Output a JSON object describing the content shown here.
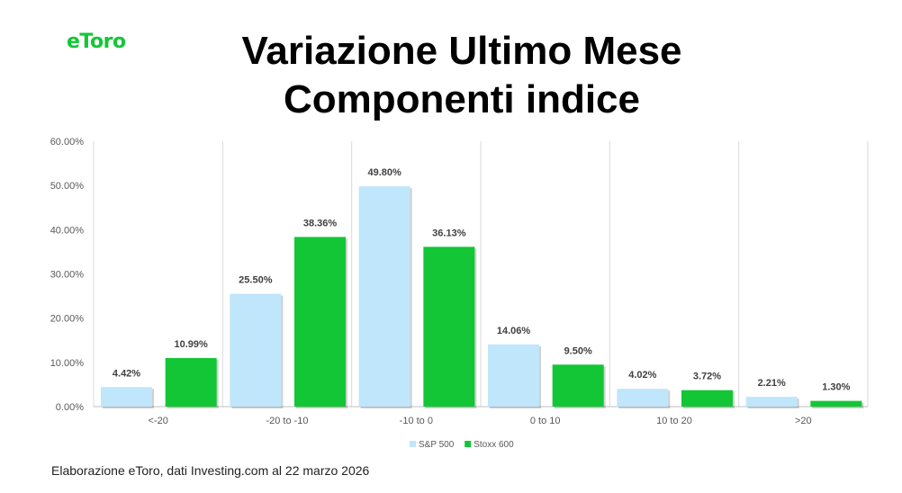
{
  "brand": {
    "logo_text": "eToro",
    "accent_color": "#13c636"
  },
  "title_line1": "Variazione Ultimo Mese",
  "title_line2": "Componenti indice",
  "footer": "Elaborazione eToro, dati Investing.com al 22 marzo 2026",
  "chart_data": {
    "type": "bar",
    "categories": [
      "<-20",
      "-20 to -10",
      "-10 to 0",
      "0 to 10",
      "10 to 20",
      ">20"
    ],
    "series": [
      {
        "name": "S&P 500",
        "color": "#bfe6fb",
        "values": [
          4.42,
          25.5,
          49.8,
          14.06,
          4.02,
          2.21
        ],
        "labels": [
          "4.42%",
          "25.50%",
          "49.80%",
          "14.06%",
          "4.02%",
          "2.21%"
        ]
      },
      {
        "name": "Stoxx 600",
        "color": "#13c636",
        "values": [
          10.99,
          38.36,
          36.13,
          9.5,
          3.72,
          1.3
        ],
        "labels": [
          "10.99%",
          "38.36%",
          "36.13%",
          "9.50%",
          "3.72%",
          "1.30%"
        ]
      }
    ],
    "ylim": [
      0,
      60
    ],
    "yticks": [
      "0.00%",
      "10.00%",
      "20.00%",
      "30.00%",
      "40.00%",
      "50.00%",
      "60.00%"
    ],
    "grid": "vertical category separators",
    "legend": "bottom"
  }
}
